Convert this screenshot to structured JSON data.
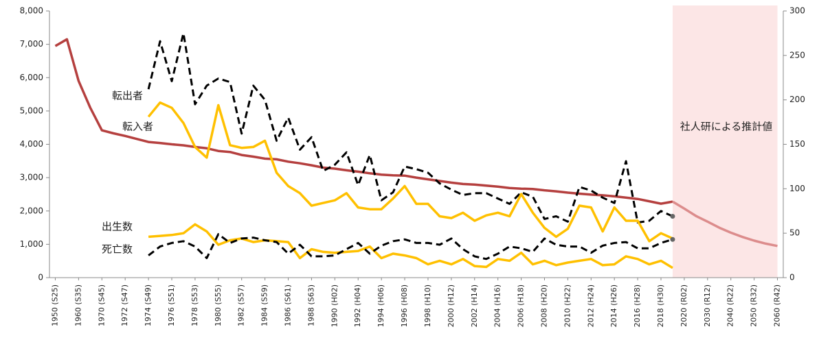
{
  "chart_data": {
    "type": "line",
    "categories": [
      "1950 (S25)",
      null,
      "1960 (S35)",
      null,
      "1970 (S45)",
      null,
      "1972 (S47)",
      null,
      "1974 (S49)",
      null,
      "1976 (S51)",
      null,
      "1978 (S53)",
      null,
      "1980 (S55)",
      null,
      "1982 (S57)",
      null,
      "1984 (S59)",
      null,
      "1986 (S61)",
      null,
      "1988 (S63)",
      null,
      "1990 (H02)",
      null,
      "1992 (H04)",
      null,
      "1994 (H06)",
      null,
      "1996 (H08)",
      null,
      "1998 (H10)",
      null,
      "2000 (H12)",
      null,
      "2002 (H14)",
      null,
      "2004 (H16)",
      null,
      "2006 (H18)",
      null,
      "2008 (H20)",
      null,
      "2010 (H22)",
      null,
      "2012 (H24)",
      null,
      "2014 (H26)",
      null,
      "2016 (H28)",
      null,
      "2018 (H30)",
      null,
      "2020 (R02)",
      null,
      "2030 (R12)",
      null,
      "2040 (R22)",
      null,
      "2050 (R32)",
      null,
      "2060 (R42)"
    ],
    "ylim": [
      0,
      8000
    ],
    "yticks": [
      0,
      {
        "value": 1000,
        "label": "1,000"
      },
      {
        "value": 2000,
        "label": "2,000"
      },
      {
        "value": 3000,
        "label": "3,000"
      },
      {
        "value": 4000,
        "label": "4,000"
      },
      {
        "value": 5000,
        "label": "5,000"
      },
      {
        "value": 6000,
        "label": "6,000"
      },
      {
        "value": 7000,
        "label": "7,000"
      },
      {
        "value": 8000,
        "label": "8,000"
      }
    ],
    "y2lim": [
      0,
      300
    ],
    "y2ticks": [
      0,
      50,
      100,
      150,
      200,
      250,
      300
    ],
    "annotation": "社人研による推計値",
    "series": [
      {
        "color": "#b5403f",
        "values": [
          6950,
          7150,
          5900,
          5100,
          4420,
          4330,
          4250,
          4160,
          4070,
          4040,
          4000,
          3970,
          3920,
          3880,
          3800,
          3770,
          3680,
          3630,
          3570,
          3550,
          3480,
          3430,
          3370,
          3300,
          3270,
          3220,
          3180,
          3130,
          3090,
          3070,
          3060,
          3000,
          2950,
          2900,
          2850,
          2810,
          2790,
          2760,
          2730,
          2690,
          2670,
          2660,
          2620,
          2590,
          2550,
          2520,
          2490,
          2470,
          2440,
          2400,
          2360,
          2290,
          2220,
          2280,
          null,
          null,
          null,
          null,
          null,
          null,
          null,
          null,
          null
        ]
      },
      {
        "color": "#dc8c8c",
        "projection": true,
        "values": [
          null,
          null,
          null,
          null,
          null,
          null,
          null,
          null,
          null,
          null,
          null,
          null,
          null,
          null,
          null,
          null,
          null,
          null,
          null,
          null,
          null,
          null,
          null,
          null,
          null,
          null,
          null,
          null,
          null,
          null,
          null,
          null,
          null,
          null,
          null,
          null,
          null,
          null,
          null,
          null,
          null,
          null,
          null,
          null,
          null,
          null,
          null,
          null,
          null,
          null,
          null,
          null,
          null,
          2280,
          2070,
          1850,
          1680,
          1500,
          1350,
          1220,
          1110,
          1020,
          950
        ]
      },
      {
        "name": "転出者",
        "color": "#000000",
        "dashed": true,
        "axis": "y2",
        "values": [
          null,
          null,
          null,
          null,
          null,
          null,
          null,
          null,
          212,
          266,
          221,
          275,
          195,
          216,
          224,
          220,
          162,
          216,
          200,
          154,
          180,
          144,
          158,
          120,
          127,
          141,
          104,
          138,
          87,
          96,
          125,
          122,
          118,
          106,
          99,
          93,
          95,
          95,
          89,
          83,
          96,
          91,
          66,
          69,
          63,
          102,
          98,
          90,
          84,
          131,
          62,
          64,
          75,
          69,
          null,
          null,
          null,
          null,
          null,
          null,
          null,
          null,
          null
        ]
      },
      {
        "name": "転入者",
        "color": "#ffc000",
        "axis": "y2",
        "values": [
          null,
          null,
          null,
          null,
          null,
          null,
          null,
          null,
          181,
          197,
          191,
          174,
          147,
          135,
          194,
          149,
          146,
          147,
          154,
          118,
          103,
          95,
          81,
          84,
          87,
          95,
          79,
          77,
          77,
          89,
          103,
          83,
          83,
          69,
          67,
          73,
          64,
          70,
          73,
          69,
          94,
          73,
          56,
          46,
          55,
          81,
          79,
          52,
          79,
          64,
          64,
          41,
          50,
          44,
          null,
          null,
          null,
          null,
          null,
          null,
          null,
          null,
          null
        ]
      },
      {
        "name": "出生数",
        "color": "#ffc000",
        "axis": "y2",
        "values": [
          null,
          null,
          null,
          null,
          null,
          null,
          null,
          null,
          46,
          47,
          48,
          50,
          60,
          52,
          37,
          42,
          44,
          40,
          42,
          41,
          40,
          22,
          32,
          29,
          28,
          29,
          30,
          35,
          22,
          27,
          25,
          22,
          15,
          19,
          15,
          21,
          13,
          12,
          21,
          19,
          28,
          15,
          19,
          14,
          17,
          19,
          21,
          14,
          15,
          24,
          21,
          15,
          19,
          11,
          null,
          null,
          null,
          null,
          null,
          null,
          null,
          null,
          null
        ]
      },
      {
        "name": "死亡数",
        "color": "#000000",
        "dashed": true,
        "axis": "y2",
        "values": [
          null,
          null,
          null,
          null,
          null,
          null,
          null,
          null,
          25,
          35,
          39,
          41,
          35,
          22,
          49,
          39,
          44,
          45,
          42,
          40,
          27,
          37,
          24,
          24,
          25,
          32,
          39,
          27,
          36,
          41,
          43,
          39,
          39,
          37,
          44,
          32,
          24,
          21,
          27,
          35,
          33,
          29,
          44,
          37,
          35,
          35,
          28,
          36,
          39,
          40,
          33,
          33,
          39,
          43,
          null,
          null,
          null,
          null,
          null,
          null,
          null,
          null,
          null
        ]
      }
    ]
  }
}
